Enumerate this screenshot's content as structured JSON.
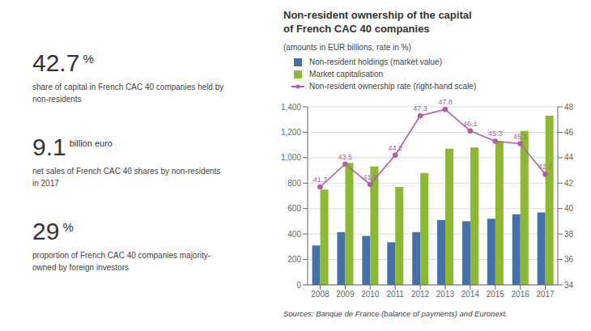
{
  "chart_data": {
    "type": "bar",
    "title": "Non-resident ownership of the capital\nof French CAC 40 companies",
    "subtitle": "(amounts in EUR billions, rate in %)",
    "categories": [
      "2008",
      "2009",
      "2010",
      "2011",
      "2012",
      "2013",
      "2014",
      "2015",
      "2016",
      "2017"
    ],
    "series": [
      {
        "name": "Non-resident holdings (market value)",
        "type": "bar",
        "color": "#4472a8",
        "values": [
          310,
          415,
          385,
          335,
          415,
          510,
          500,
          520,
          555,
          570
        ]
      },
      {
        "name": "Market capitalisation",
        "type": "bar",
        "color": "#8cb834",
        "values": [
          750,
          960,
          930,
          770,
          880,
          1070,
          1080,
          1130,
          1210,
          1330
        ]
      },
      {
        "name": "Non-resident ownership rate (right-hand scale)",
        "type": "line",
        "color": "#b060a0",
        "axis": "y2",
        "marker": "circle",
        "line_style": "solid",
        "data_labels": true,
        "values": [
          41.7,
          43.5,
          41.9,
          44.2,
          47.3,
          47.8,
          46.1,
          45.3,
          45.1,
          42.7
        ]
      }
    ],
    "ylim": [
      0,
      1400
    ],
    "yticks": [
      0,
      200,
      400,
      600,
      800,
      {
        "value": 1000,
        "label": "1,000"
      },
      {
        "value": 1200,
        "label": "1,200"
      },
      {
        "value": 1400,
        "label": "1,400"
      }
    ],
    "y2lim": [
      34,
      48
    ],
    "y2ticks": [
      34,
      36,
      38,
      40,
      42,
      44,
      46,
      48
    ],
    "grid": true,
    "legend": "upper left",
    "annotations": [
      "42.7",
      "%",
      "share of capital in French CAC 40 companies held by\nnon-residents",
      "9.1",
      "billion euro",
      "net sales of French CAC 40 shares by non-residents\nin 2017",
      "29",
      "%",
      "proportion of French CAC 40 companies majority-\nowned by foreign investors",
      "Sources: Banque de France (balance of payments) and Euronext."
    ]
  }
}
